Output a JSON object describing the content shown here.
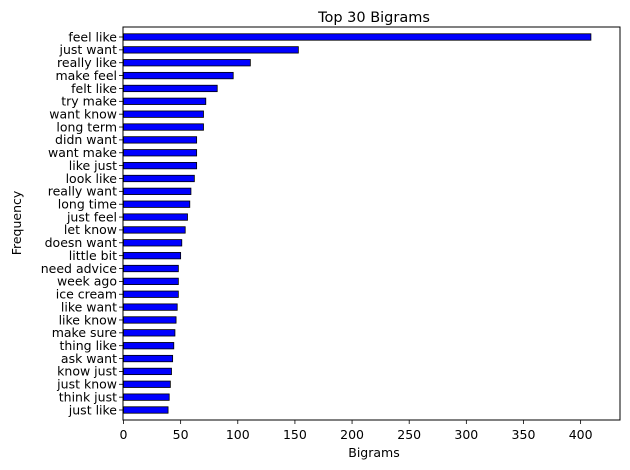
{
  "chart_data": {
    "type": "bar",
    "orientation": "horizontal",
    "title": "Top 30 Bigrams",
    "xlabel": "Bigrams",
    "ylabel": "Frequency",
    "xlim": [
      0,
      428
    ],
    "xticks": [
      0,
      50,
      100,
      150,
      200,
      250,
      300,
      350,
      400
    ],
    "grid": false,
    "legend": "none",
    "bar_color": "#0000ff",
    "edge_color": "#000000",
    "categories": [
      "feel like",
      "just want",
      "really like",
      "make feel",
      "felt like",
      "try make",
      "want know",
      "long term",
      "didn want",
      "want make",
      "like just",
      "look like",
      "really want",
      "long time",
      "just feel",
      "let know",
      "doesn want",
      "little bit",
      "need advice",
      "week ago",
      "ice cream",
      "like want",
      "like know",
      "make sure",
      "thing like",
      "ask want",
      "know just",
      "just know",
      "think just",
      "just like"
    ],
    "values": [
      409,
      153,
      111,
      96,
      82,
      72,
      70,
      70,
      64,
      64,
      64,
      62,
      59,
      58,
      56,
      54,
      51,
      50,
      48,
      48,
      48,
      47,
      46,
      45,
      44,
      43,
      42,
      41,
      40,
      39
    ]
  }
}
